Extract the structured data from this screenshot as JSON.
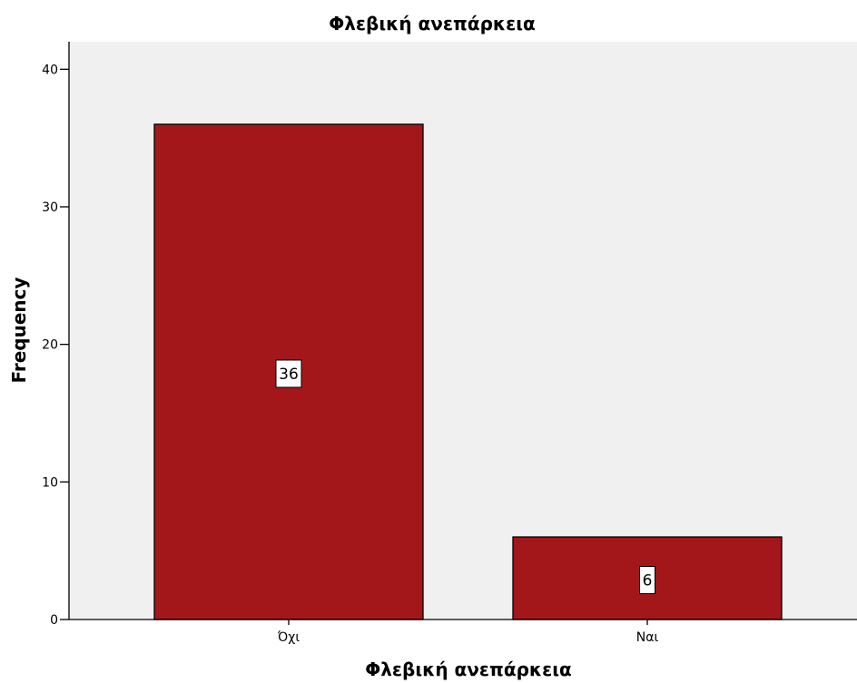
{
  "chart_data": {
    "type": "bar",
    "title": "Φλεβική ανεπάρκεια",
    "xlabel": "Φλεβική ανεπάρκεια",
    "ylabel": "Frequency",
    "categories": [
      "Όχι",
      "Ναι"
    ],
    "values": [
      36,
      6
    ],
    "data_labels": [
      "36",
      "6"
    ],
    "ylim": [
      0,
      42
    ],
    "yticks": [
      0,
      10,
      20,
      30,
      40
    ],
    "ytick_labels": [
      "0",
      "10",
      "20",
      "30",
      "40"
    ],
    "grid": false,
    "legend": "none",
    "colors": {
      "bar_fill": "#a3171b",
      "bar_stroke": "#000000",
      "plot_background": "#f0f0f0",
      "axis": "#000000",
      "label_box": "#ffffff"
    }
  }
}
